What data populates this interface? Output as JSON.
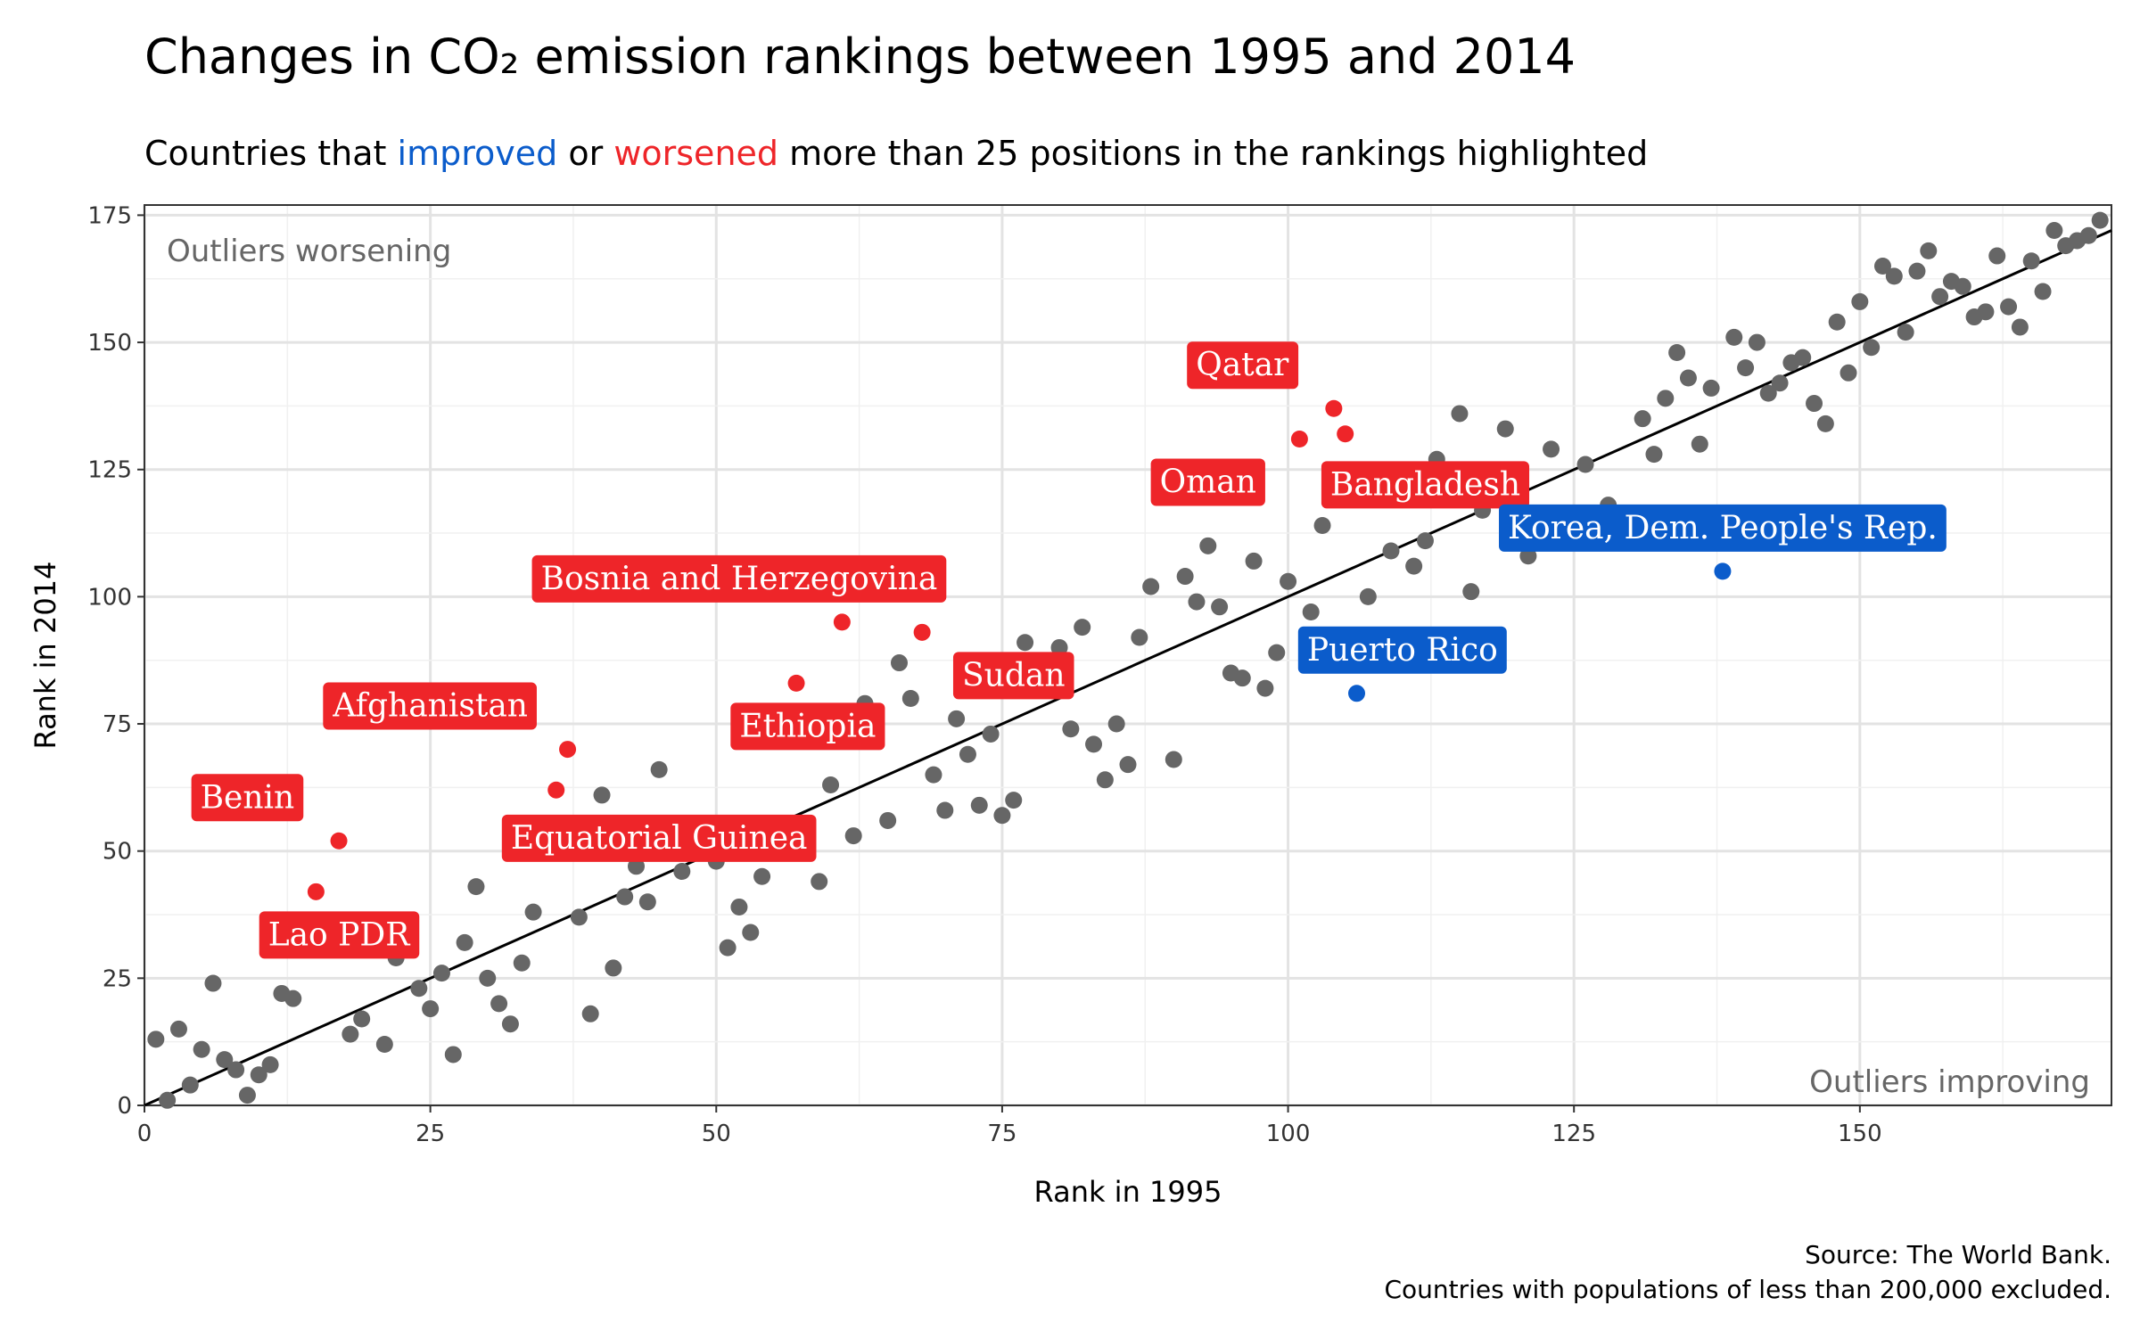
{
  "chart_data": {
    "type": "scatter",
    "title": "Changes in CO₂ emission rankings between 1995 and 2014",
    "subtitle": {
      "prefix": "Countries that ",
      "improved": "improved",
      "mid": " or ",
      "worsened": "worsened",
      "suffix": " more than 25 positions in the rankings highlighted"
    },
    "xlabel": "Rank in 1995",
    "ylabel": "Rank in 2014",
    "xlim": [
      0,
      172
    ],
    "ylim": [
      0,
      177
    ],
    "xticks": [
      0,
      25,
      50,
      75,
      100,
      125,
      150
    ],
    "yticks": [
      0,
      25,
      50,
      75,
      100,
      125,
      150,
      175
    ],
    "grid": true,
    "reference_line": "y = x",
    "annotations": {
      "top_left": "Outliers worsening",
      "bottom_right": "Outliers improving"
    },
    "caption": [
      "Source: The World Bank.",
      "Countries with populations of less than 200,000 excluded."
    ],
    "colors": {
      "neutral": "#666666",
      "worsened": "#ee2529",
      "improved": "#0b5ccb",
      "line": "#000000"
    },
    "points": [
      [
        1,
        13
      ],
      [
        2,
        1
      ],
      [
        3,
        15
      ],
      [
        4,
        4
      ],
      [
        5,
        11
      ],
      [
        6,
        24
      ],
      [
        7,
        9
      ],
      [
        8,
        7
      ],
      [
        9,
        2
      ],
      [
        10,
        6
      ],
      [
        11,
        8
      ],
      [
        12,
        22
      ],
      [
        13,
        21
      ],
      [
        18,
        14
      ],
      [
        19,
        17
      ],
      [
        20,
        35
      ],
      [
        21,
        12
      ],
      [
        22,
        29
      ],
      [
        23,
        33
      ],
      [
        24,
        23
      ],
      [
        25,
        19
      ],
      [
        26,
        26
      ],
      [
        27,
        10
      ],
      [
        28,
        32
      ],
      [
        29,
        43
      ],
      [
        30,
        25
      ],
      [
        31,
        20
      ],
      [
        32,
        16
      ],
      [
        33,
        28
      ],
      [
        34,
        38
      ],
      [
        38,
        37
      ],
      [
        39,
        18
      ],
      [
        40,
        61
      ],
      [
        41,
        27
      ],
      [
        42,
        41
      ],
      [
        43,
        47
      ],
      [
        44,
        40
      ],
      [
        45,
        66
      ],
      [
        47,
        46
      ],
      [
        50,
        48
      ],
      [
        51,
        31
      ],
      [
        52,
        39
      ],
      [
        53,
        34
      ],
      [
        54,
        45
      ],
      [
        59,
        44
      ],
      [
        60,
        63
      ],
      [
        62,
        53
      ],
      [
        63,
        79
      ],
      [
        65,
        56
      ],
      [
        66,
        87
      ],
      [
        67,
        80
      ],
      [
        69,
        65
      ],
      [
        70,
        58
      ],
      [
        71,
        76
      ],
      [
        72,
        69
      ],
      [
        73,
        59
      ],
      [
        74,
        73
      ],
      [
        75,
        57
      ],
      [
        76,
        60
      ],
      [
        77,
        91
      ],
      [
        78,
        87
      ],
      [
        80,
        90
      ],
      [
        81,
        74
      ],
      [
        82,
        94
      ],
      [
        83,
        71
      ],
      [
        84,
        64
      ],
      [
        85,
        75
      ],
      [
        86,
        67
      ],
      [
        87,
        92
      ],
      [
        88,
        102
      ],
      [
        90,
        68
      ],
      [
        91,
        104
      ],
      [
        92,
        99
      ],
      [
        93,
        110
      ],
      [
        94,
        98
      ],
      [
        95,
        85
      ],
      [
        96,
        84
      ],
      [
        97,
        107
      ],
      [
        98,
        82
      ],
      [
        99,
        89
      ],
      [
        100,
        103
      ],
      [
        102,
        97
      ],
      [
        103,
        114
      ],
      [
        107,
        100
      ],
      [
        109,
        109
      ],
      [
        111,
        106
      ],
      [
        112,
        111
      ],
      [
        113,
        127
      ],
      [
        115,
        136
      ],
      [
        116,
        101
      ],
      [
        117,
        117
      ],
      [
        119,
        133
      ],
      [
        120,
        113
      ],
      [
        121,
        108
      ],
      [
        123,
        129
      ],
      [
        126,
        126
      ],
      [
        128,
        118
      ],
      [
        131,
        135
      ],
      [
        132,
        128
      ],
      [
        133,
        139
      ],
      [
        134,
        148
      ],
      [
        135,
        143
      ],
      [
        136,
        130
      ],
      [
        137,
        141
      ],
      [
        139,
        151
      ],
      [
        140,
        145
      ],
      [
        141,
        150
      ],
      [
        142,
        140
      ],
      [
        143,
        142
      ],
      [
        144,
        146
      ],
      [
        145,
        147
      ],
      [
        146,
        138
      ],
      [
        147,
        134
      ],
      [
        148,
        154
      ],
      [
        149,
        144
      ],
      [
        150,
        158
      ],
      [
        151,
        149
      ],
      [
        152,
        165
      ],
      [
        153,
        163
      ],
      [
        154,
        152
      ],
      [
        155,
        164
      ],
      [
        156,
        168
      ],
      [
        157,
        159
      ],
      [
        158,
        162
      ],
      [
        159,
        161
      ],
      [
        160,
        155
      ],
      [
        161,
        156
      ],
      [
        162,
        167
      ],
      [
        163,
        157
      ],
      [
        164,
        153
      ],
      [
        165,
        166
      ],
      [
        166,
        160
      ],
      [
        167,
        172
      ],
      [
        168,
        169
      ],
      [
        169,
        170
      ],
      [
        170,
        171
      ],
      [
        171,
        174
      ]
    ],
    "highlighted": [
      {
        "name": "Lao PDR",
        "x": 15,
        "y": 42,
        "group": "worsened",
        "label_x": 17,
        "label_y": 33.5
      },
      {
        "name": "Benin",
        "x": 17,
        "y": 52,
        "group": "worsened",
        "label_x": 9,
        "label_y": 60.5
      },
      {
        "name": "Afghanistan",
        "x": 37,
        "y": 70,
        "group": "worsened",
        "label_x": 25,
        "label_y": 78.5
      },
      {
        "name": "Equatorial Guinea",
        "x": 36,
        "y": 62,
        "group": "worsened",
        "label_x": 45,
        "label_y": 52.5
      },
      {
        "name": "Bosnia and Herzegovina",
        "x": 61,
        "y": 95,
        "group": "worsened",
        "label_x": 52,
        "label_y": 103.5
      },
      {
        "name": "Ethiopia",
        "x": 57,
        "y": 83,
        "group": "worsened",
        "label_x": 58,
        "label_y": 74.5
      },
      {
        "name": "Sudan",
        "x": 68,
        "y": 93,
        "group": "worsened",
        "label_x": 76,
        "label_y": 84.5
      },
      {
        "name": "Oman",
        "x": 101,
        "y": 131,
        "group": "worsened",
        "label_x": 93,
        "label_y": 122.5
      },
      {
        "name": "Qatar",
        "x": 104,
        "y": 137,
        "group": "worsened",
        "label_x": 96,
        "label_y": 145.5
      },
      {
        "name": "Bangladesh",
        "x": 105,
        "y": 132,
        "group": "worsened",
        "label_x": 112,
        "label_y": 122
      },
      {
        "name": "Korea, Dem. People's Rep.",
        "x": 138,
        "y": 105,
        "group": "improved",
        "label_x": 138,
        "label_y": 113.5
      },
      {
        "name": "Puerto Rico",
        "x": 106,
        "y": 81,
        "group": "improved",
        "label_x": 110,
        "label_y": 89.5
      }
    ]
  }
}
